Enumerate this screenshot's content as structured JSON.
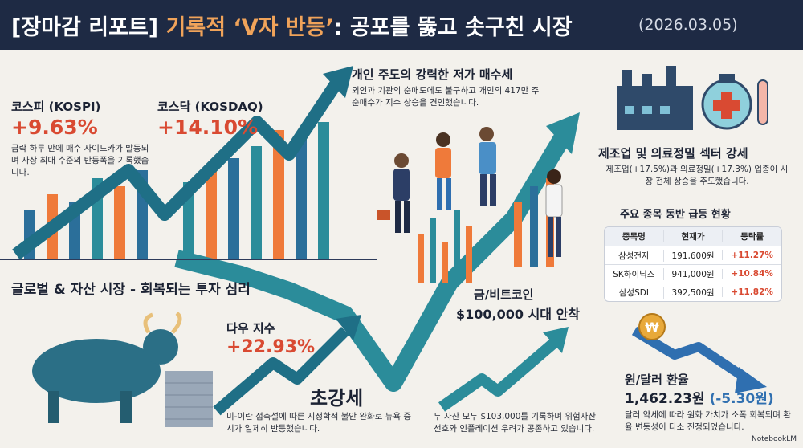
{
  "header": {
    "title_prefix": "[장마감 리포트] ",
    "title_highlight": "기록적 ‘V자 반등’",
    "title_suffix": ": 공포를 뚫고 솟구친 시장",
    "date": "(2026.03.05)"
  },
  "kospi": {
    "label": "코스피 (KOSPI)",
    "value": "+9.63%",
    "desc": "급락 하루 만에 매수 사이드카가 발동되며 사상 최대 수준의 반등폭을 기록했습니다."
  },
  "kosdaq": {
    "label": "코스닥 (KOSDAQ)",
    "value": "+14.10%"
  },
  "retail": {
    "title": "개인 주도의 강력한 저가 매수세",
    "desc": "외인과 기관의 순매도에도 불구하고 개인의 417만 주 순매수가 지수 상승을 견인했습니다."
  },
  "sector": {
    "title": "제조업 및 의료정밀 섹터 강세",
    "desc": "제조업(+17.5%)과 의료정밀(+17.3%) 업종이 시장 전체 상승을 주도했습니다."
  },
  "stocks": {
    "title": "주요 종목 동반 급등 현황",
    "headers": [
      "종목명",
      "현재가",
      "등락률"
    ],
    "rows": [
      [
        "삼성전자",
        "191,600원",
        "+11.27%"
      ],
      [
        "SK하이닉스",
        "941,000원",
        "+10.84%"
      ],
      [
        "삼성SDI",
        "392,500원",
        "+11.82%"
      ]
    ]
  },
  "global": {
    "title": "글로벌 & 자산 시장 - 회복되는 투자 심리"
  },
  "dow": {
    "label": "다우 지수",
    "value": "+22.93%",
    "strong": "초강세",
    "desc": "미-이란 접촉설에 따른 지정학적 불안 완화로 뉴욕 증시가 일제히 반등했습니다."
  },
  "gold_btc": {
    "title1": "금/비트코인",
    "title2": "$100,000 시대 안착",
    "desc": "두 자산 모두 $103,000를 기록하며 위험자산 선호와 인플레이션 우려가 공존하고 있습니다."
  },
  "fx": {
    "label": "원/달러 환율",
    "value": "1,462.23원",
    "change": "(-5.30원)",
    "desc": "달러 약세에 따라 원화 가치가 소폭 회복되며 환율 변동성이 다소 진정되었습니다.",
    "won_symbol": "₩"
  },
  "brand": "NotebookLM",
  "colors": {
    "navy": "#1e2a44",
    "red": "#d94a32",
    "teal": "#2b8c9a",
    "orange": "#ef7a3a",
    "blue": "#2f6fb0"
  }
}
